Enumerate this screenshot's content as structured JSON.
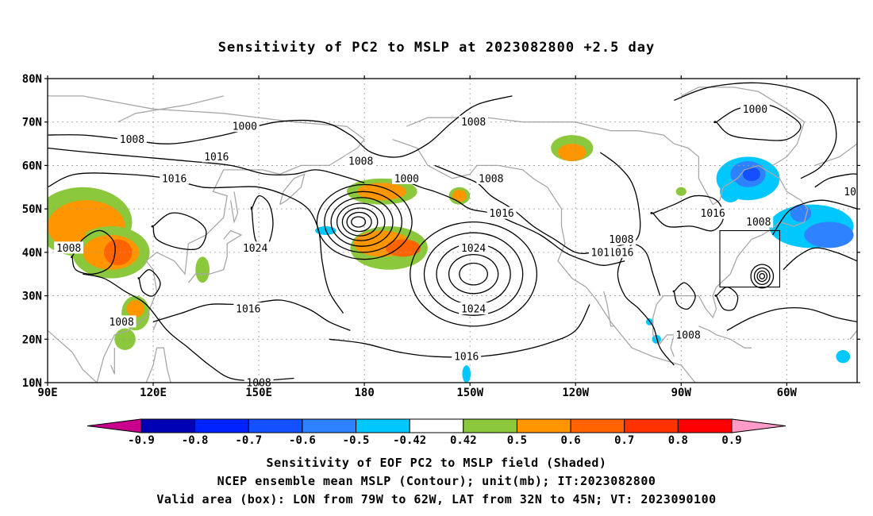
{
  "title": "Sensitivity of PC2 to MSLP at 2023082800 +2.5 day",
  "lat_labels": [
    "80N",
    "70N",
    "60N",
    "50N",
    "40N",
    "30N",
    "20N",
    "10N"
  ],
  "lon_labels": [
    "90E",
    "120E",
    "150E",
    "180",
    "150W",
    "120W",
    "90W",
    "60W"
  ],
  "lat_values": [
    80,
    70,
    60,
    50,
    40,
    30,
    20,
    10
  ],
  "lon_values": [
    90,
    120,
    150,
    180,
    210,
    240,
    270,
    300
  ],
  "map_extent": {
    "lon_min": 90,
    "lon_max": 320,
    "lat_min": 10,
    "lat_max": 80
  },
  "contour_labels": [
    {
      "text": "1000",
      "lon": 146,
      "lat": 69
    },
    {
      "text": "1008",
      "lon": 114,
      "lat": 66
    },
    {
      "text": "1016",
      "lon": 138,
      "lat": 62
    },
    {
      "text": "1016",
      "lon": 126,
      "lat": 57
    },
    {
      "text": "1008",
      "lon": 96,
      "lat": 41
    },
    {
      "text": "1024",
      "lon": 149,
      "lat": 41
    },
    {
      "text": "1016",
      "lon": 147,
      "lat": 27
    },
    {
      "text": "1008",
      "lon": 111,
      "lat": 24
    },
    {
      "text": "1008",
      "lon": 150,
      "lat": 10
    },
    {
      "text": "1008",
      "lon": 179,
      "lat": 61
    },
    {
      "text": "1000",
      "lon": 192,
      "lat": 57
    },
    {
      "text": "1008",
      "lon": 211,
      "lat": 70
    },
    {
      "text": "1008",
      "lon": 216,
      "lat": 57
    },
    {
      "text": "1016",
      "lon": 219,
      "lat": 49
    },
    {
      "text": "1024",
      "lon": 211,
      "lat": 41
    },
    {
      "text": "1024",
      "lon": 211,
      "lat": 27
    },
    {
      "text": "1016",
      "lon": 209,
      "lat": 16
    },
    {
      "text": "1008",
      "lon": 253,
      "lat": 43
    },
    {
      "text": "1016",
      "lon": 253,
      "lat": 40
    },
    {
      "text": "101",
      "lon": 247,
      "lat": 40
    },
    {
      "text": "1016",
      "lon": 279,
      "lat": 49
    },
    {
      "text": "1008",
      "lon": 272,
      "lat": 21
    },
    {
      "text": "1008",
      "lon": 292,
      "lat": 47
    },
    {
      "text": "1000",
      "lon": 291,
      "lat": 73
    },
    {
      "text": "10",
      "lon": 318,
      "lat": 54
    }
  ],
  "valid_box": {
    "lon_min": 281,
    "lon_max": 298,
    "lat_min": 32,
    "lat_max": 45
  },
  "colorbar": {
    "levels": [
      "-0.9",
      "-0.8",
      "-0.7",
      "-0.6",
      "-0.5",
      "-0.42",
      "0.42",
      "0.5",
      "0.6",
      "0.7",
      "0.8",
      "0.9"
    ],
    "colors": [
      "#0000b4",
      "#0022ff",
      "#1450ff",
      "#2f82ff",
      "#00c8ff",
      "#ffffff",
      "#8cc83c",
      "#ff9600",
      "#ff6400",
      "#ff3200",
      "#ff0000"
    ],
    "low_end_color": "#c8008c",
    "high_end_color": "#ff9bc8"
  },
  "caption_lines": [
    "Sensitivity of EOF PC2 to MSLP field (Shaded)",
    "NCEP ensemble mean MSLP (Contour); unit(mb); IT:2023082800",
    "Valid area (box): LON from 79W to 62W, LAT from 32N to 45N; VT: 2023090100"
  ]
}
